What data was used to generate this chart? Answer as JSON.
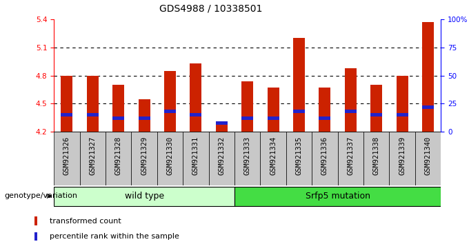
{
  "title": "GDS4988 / 10338501",
  "samples": [
    "GSM921326",
    "GSM921327",
    "GSM921328",
    "GSM921329",
    "GSM921330",
    "GSM921331",
    "GSM921332",
    "GSM921333",
    "GSM921334",
    "GSM921335",
    "GSM921336",
    "GSM921337",
    "GSM921338",
    "GSM921339",
    "GSM921340"
  ],
  "transformed_count": [
    4.8,
    4.8,
    4.7,
    4.55,
    4.85,
    4.93,
    4.3,
    4.74,
    4.67,
    5.2,
    4.67,
    4.88,
    4.7,
    4.8,
    5.37
  ],
  "percentile_rank": [
    15,
    15,
    12,
    12,
    18,
    15,
    8,
    12,
    12,
    18,
    12,
    18,
    15,
    15,
    22
  ],
  "base": 4.2,
  "ylim_left": [
    4.2,
    5.4
  ],
  "ylim_right": [
    0,
    100
  ],
  "yticks_left": [
    4.2,
    4.5,
    4.8,
    5.1,
    5.4
  ],
  "yticks_right": [
    0,
    25,
    50,
    75,
    100
  ],
  "ytick_labels_right": [
    "0",
    "25",
    "50",
    "75",
    "100%"
  ],
  "grid_lines": [
    4.5,
    4.8,
    5.1
  ],
  "bar_color": "#cc2200",
  "blue_color": "#2222cc",
  "groups": [
    {
      "label": "wild type",
      "start": 0,
      "end": 7,
      "color": "#ccffcc"
    },
    {
      "label": "Srfp5 mutation",
      "start": 7,
      "end": 15,
      "color": "#44dd44"
    }
  ],
  "legend_items": [
    {
      "label": "transformed count",
      "color": "#cc2200"
    },
    {
      "label": "percentile rank within the sample",
      "color": "#2222cc"
    }
  ],
  "genotype_label": "genotype/variation",
  "bar_width": 0.45,
  "title_fontsize": 10,
  "tick_fontsize": 7.5,
  "label_fontsize": 8
}
